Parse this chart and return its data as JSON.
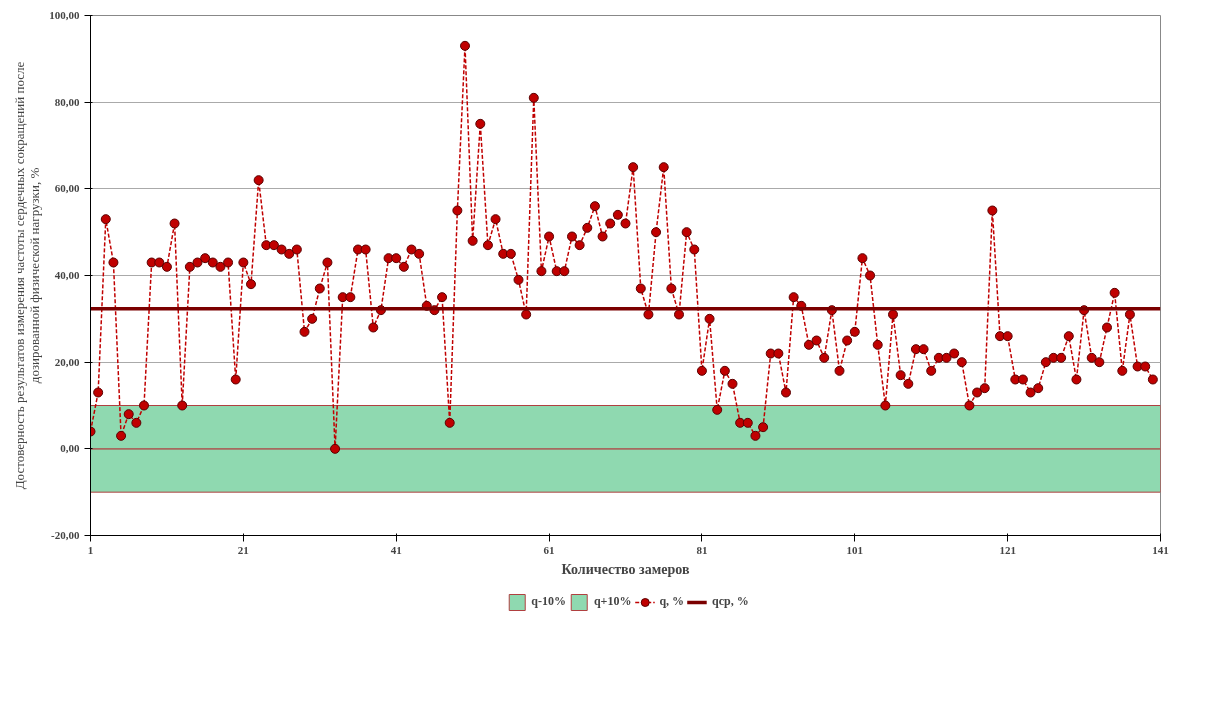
{
  "chart_data": {
    "type": "line",
    "xlabel": "Количество замеров",
    "ylabel": "Достоверность результатов измерения частоты сердечных сокращений после дозированной физической нагрузки, %",
    "xlim": [
      1,
      141
    ],
    "xticks": [
      1,
      21,
      41,
      61,
      81,
      101,
      121,
      141
    ],
    "ylim": [
      -20,
      100
    ],
    "yticks": [
      {
        "value": -20,
        "label": "-20,00"
      },
      {
        "value": 0,
        "label": "0,00"
      },
      {
        "value": 20,
        "label": "20,00"
      },
      {
        "value": 40,
        "label": "40,00"
      },
      {
        "value": 60,
        "label": "60,00"
      },
      {
        "value": 80,
        "label": "80,00"
      },
      {
        "value": 100,
        "label": "100,00"
      }
    ],
    "grid": "y",
    "legend": "bottom",
    "marker": "circle",
    "line_style": "dashed",
    "x": [
      1,
      2,
      3,
      4,
      5,
      6,
      7,
      8,
      9,
      10,
      11,
      12,
      13,
      14,
      15,
      16,
      17,
      18,
      19,
      20,
      21,
      22,
      23,
      24,
      25,
      26,
      27,
      28,
      29,
      30,
      31,
      32,
      33,
      34,
      35,
      36,
      37,
      38,
      39,
      40,
      41,
      42,
      43,
      44,
      45,
      46,
      47,
      48,
      49,
      50,
      51,
      52,
      53,
      54,
      55,
      56,
      57,
      58,
      59,
      60,
      61,
      62,
      63,
      64,
      65,
      66,
      67,
      68,
      69,
      70,
      71,
      72,
      73,
      74,
      75,
      76,
      77,
      78,
      79,
      80,
      81,
      82,
      83,
      84,
      85,
      86,
      87,
      88,
      89,
      90,
      91,
      92,
      93,
      94,
      95,
      96,
      97,
      98,
      99,
      100,
      101,
      102,
      103,
      104,
      105,
      106,
      107,
      108,
      109,
      110,
      111,
      112,
      113,
      114,
      115,
      116,
      117,
      118,
      119,
      120,
      121,
      122,
      123,
      124,
      125,
      126,
      127,
      128,
      129,
      130,
      131,
      132,
      133,
      134,
      135,
      136,
      137,
      138,
      139,
      140
    ],
    "series": [
      {
        "name": "q, %",
        "color": "#c00000",
        "values": [
          4,
          13,
          53,
          43,
          3,
          8,
          6,
          10,
          43,
          43,
          42,
          52,
          10,
          42,
          43,
          44,
          43,
          42,
          43,
          16,
          43,
          38,
          62,
          47,
          47,
          46,
          45,
          46,
          27,
          30,
          37,
          43,
          0,
          35,
          35,
          46,
          46,
          28,
          32,
          44,
          44,
          42,
          46,
          45,
          33,
          32,
          35,
          6,
          55,
          93,
          48,
          75,
          47,
          53,
          45,
          45,
          39,
          31,
          81,
          41,
          49,
          41,
          41,
          49,
          47,
          51,
          56,
          49,
          52,
          54,
          52,
          65,
          37,
          31,
          50,
          65,
          37,
          31,
          50,
          46,
          18,
          30,
          9,
          18,
          15,
          6,
          6,
          3,
          5,
          22,
          22,
          13,
          35,
          33,
          24,
          25,
          21,
          32,
          18,
          25,
          27,
          44,
          40,
          24,
          10,
          31,
          17,
          15,
          23,
          23,
          18,
          21,
          21,
          22,
          20,
          10,
          13,
          14,
          55,
          26,
          26,
          16,
          16,
          13,
          14,
          20,
          21,
          21,
          26,
          16,
          32,
          21,
          20,
          28,
          36,
          18,
          31,
          19,
          19,
          16
        ]
      }
    ],
    "bands": [
      {
        "axis": "y",
        "from": -10,
        "to": 0,
        "label": "q-10%",
        "color": "#8fd9b0"
      },
      {
        "axis": "y",
        "from": 0,
        "to": 10,
        "label": "q+10%",
        "color": "#8fd9b0"
      }
    ],
    "ref_lines": [
      {
        "axis": "y",
        "value": 32.3,
        "label": "qср, %",
        "color": "#7b0000"
      }
    ]
  }
}
